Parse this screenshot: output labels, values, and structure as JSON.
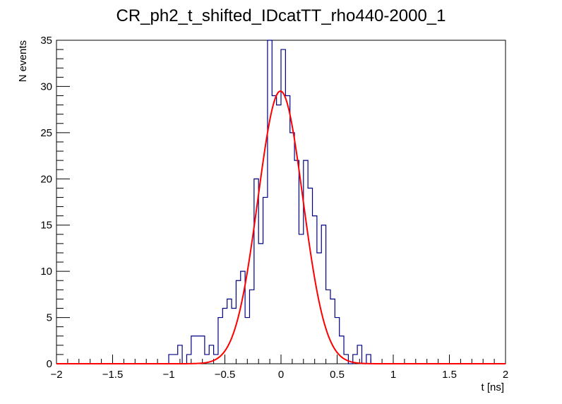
{
  "chart_data": {
    "type": "bar",
    "title": "CR_ph2_t_shifted_IDcatTT_rho440-2000_1",
    "xlabel": "t [ns]",
    "ylabel": "N events",
    "xlim": [
      -2,
      2
    ],
    "ylim": [
      0,
      35
    ],
    "x_ticks": [
      -2,
      -1.5,
      -1,
      -0.5,
      0,
      0.5,
      1,
      1.5,
      2
    ],
    "x_tick_labels": [
      "−2",
      "−1.5",
      "−1",
      "−0.5",
      "0",
      "0.5",
      "1",
      "1.5",
      "2"
    ],
    "y_ticks": [
      0,
      5,
      10,
      15,
      20,
      25,
      30,
      35
    ],
    "y_tick_labels": [
      "0",
      "5",
      "10",
      "15",
      "20",
      "25",
      "30",
      "35"
    ],
    "grid": false,
    "legend": "none",
    "series": [
      {
        "type": "step-histogram",
        "color": "#000080",
        "bin_width": 0.04,
        "bins": [
          {
            "x": -1.0,
            "y": 1
          },
          {
            "x": -0.96,
            "y": 1
          },
          {
            "x": -0.92,
            "y": 2
          },
          {
            "x": -0.88,
            "y": 0
          },
          {
            "x": -0.84,
            "y": 1
          },
          {
            "x": -0.8,
            "y": 3
          },
          {
            "x": -0.76,
            "y": 3
          },
          {
            "x": -0.72,
            "y": 3
          },
          {
            "x": -0.68,
            "y": 1
          },
          {
            "x": -0.64,
            "y": 2
          },
          {
            "x": -0.6,
            "y": 1
          },
          {
            "x": -0.56,
            "y": 5
          },
          {
            "x": -0.52,
            "y": 6
          },
          {
            "x": -0.48,
            "y": 7
          },
          {
            "x": -0.44,
            "y": 6
          },
          {
            "x": -0.4,
            "y": 9
          },
          {
            "x": -0.36,
            "y": 10
          },
          {
            "x": -0.32,
            "y": 5
          },
          {
            "x": -0.28,
            "y": 8
          },
          {
            "x": -0.24,
            "y": 20
          },
          {
            "x": -0.2,
            "y": 13
          },
          {
            "x": -0.16,
            "y": 18
          },
          {
            "x": -0.12,
            "y": 35
          },
          {
            "x": -0.08,
            "y": 29
          },
          {
            "x": -0.04,
            "y": 28
          },
          {
            "x": 0.0,
            "y": 34
          },
          {
            "x": 0.04,
            "y": 29
          },
          {
            "x": 0.08,
            "y": 25
          },
          {
            "x": 0.12,
            "y": 22
          },
          {
            "x": 0.16,
            "y": 14
          },
          {
            "x": 0.2,
            "y": 22
          },
          {
            "x": 0.24,
            "y": 19
          },
          {
            "x": 0.28,
            "y": 16
          },
          {
            "x": 0.32,
            "y": 12
          },
          {
            "x": 0.36,
            "y": 15
          },
          {
            "x": 0.4,
            "y": 8
          },
          {
            "x": 0.44,
            "y": 7
          },
          {
            "x": 0.48,
            "y": 5
          },
          {
            "x": 0.52,
            "y": 3
          },
          {
            "x": 0.56,
            "y": 1
          },
          {
            "x": 0.6,
            "y": 0
          },
          {
            "x": 0.64,
            "y": 1
          },
          {
            "x": 0.68,
            "y": 2
          },
          {
            "x": 0.72,
            "y": 0
          },
          {
            "x": 0.76,
            "y": 1
          }
        ]
      },
      {
        "type": "gaussian-fit",
        "color": "#ff0000",
        "amplitude": 29.5,
        "mean": -0.005,
        "sigma": 0.2
      }
    ]
  },
  "colors": {
    "background": "#ffffff",
    "axes": "#000000",
    "histogram": "#000080",
    "fit": "#ff0000"
  }
}
